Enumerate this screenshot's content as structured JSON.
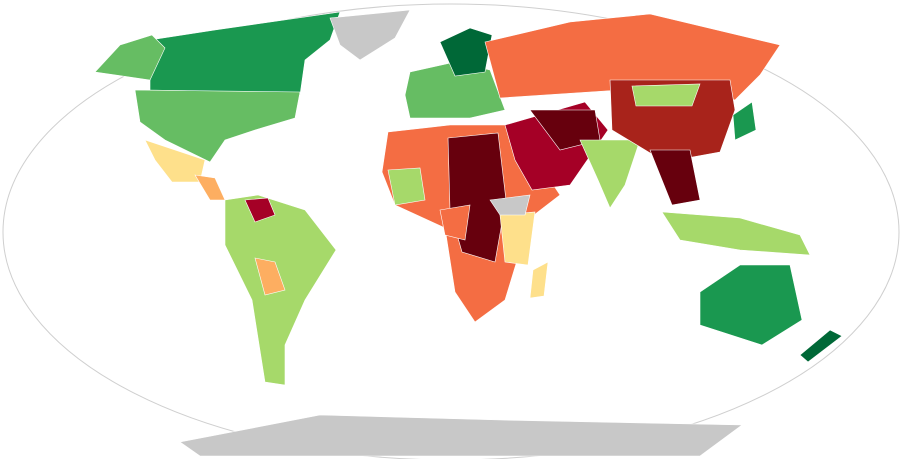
{
  "map": {
    "ocean": "#ffffff",
    "outline": "#cfcfcf",
    "regions": [
      {
        "color": "#1a9850"
      },
      {
        "color": "#66bd63"
      },
      {
        "color": "#66bd63"
      },
      {
        "color": "#c8c8c8"
      },
      {
        "color": "#fee08b"
      },
      {
        "color": "#fdae61"
      },
      {
        "color": "#a6d96a"
      },
      {
        "color": "#a50026"
      },
      {
        "color": "#fdae61"
      },
      {
        "color": "#66bd63"
      },
      {
        "color": "#006837"
      },
      {
        "color": "#f46d43"
      },
      {
        "color": "#f46d43"
      },
      {
        "color": "#67000d"
      },
      {
        "color": "#a6d96a"
      },
      {
        "color": "#fee08b"
      },
      {
        "color": "#a50026"
      },
      {
        "color": "#67000d"
      },
      {
        "color": "#a6d96a"
      },
      {
        "color": "#a8231b"
      },
      {
        "color": "#a6d96a"
      },
      {
        "color": "#67000d"
      },
      {
        "color": "#a6d96a"
      },
      {
        "color": "#1a9850"
      },
      {
        "color": "#006837"
      },
      {
        "color": "#c8c8c8"
      },
      {
        "color": "#1a9850"
      },
      {
        "color": "#fee08b"
      },
      {
        "color": "#f46d43"
      },
      {
        "color": "#c8c8c8"
      }
    ]
  }
}
